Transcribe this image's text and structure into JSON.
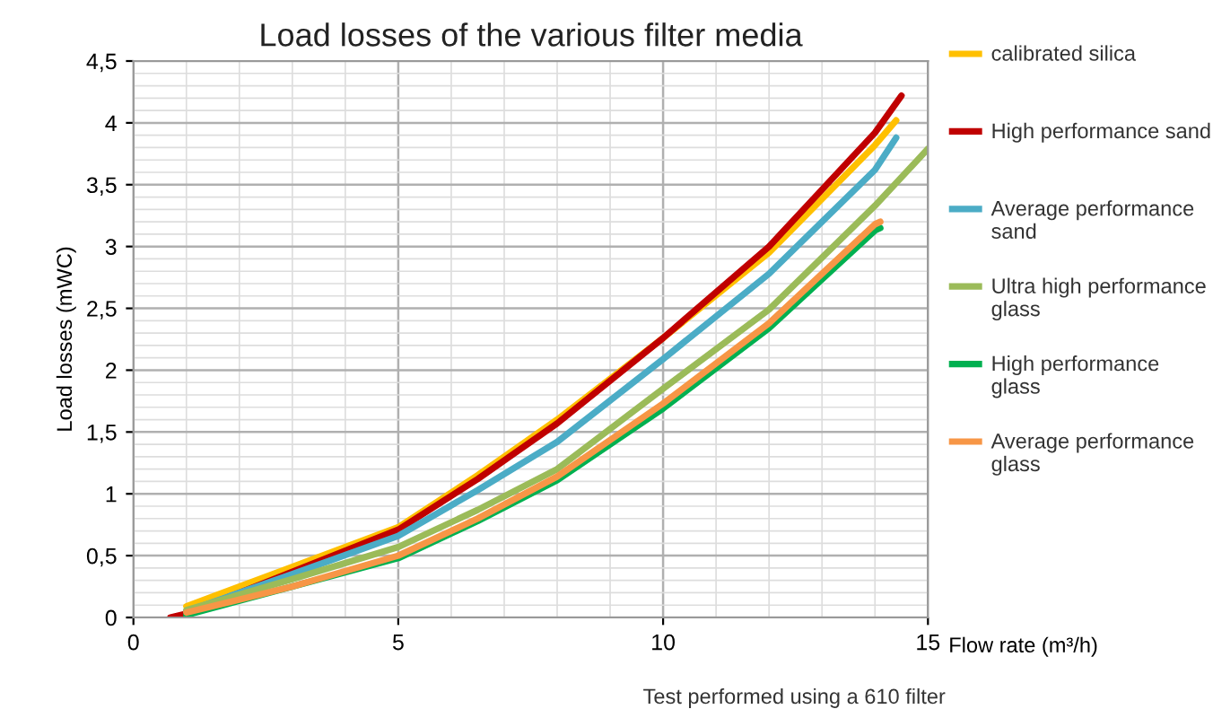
{
  "chart_data": {
    "type": "line",
    "title": "Load losses of the various filter media",
    "ylabel": "Load losses (mWC)",
    "xlabel": "Flow rate (m³/h)",
    "annotations": [
      "Test performed using a 610 filter"
    ],
    "xlim": [
      0,
      15
    ],
    "xticks": [
      0,
      5,
      10,
      15
    ],
    "ylim": [
      0,
      4.5
    ],
    "yticks": [
      0,
      {
        "value": 0.5,
        "label": "0,5"
      },
      1,
      {
        "value": 1.5,
        "label": "1,5"
      },
      2,
      {
        "value": 2.5,
        "label": "2,5"
      },
      3,
      {
        "value": 3.5,
        "label": "3,5"
      },
      4,
      {
        "value": 4.5,
        "label": "4,5"
      }
    ],
    "grid": true,
    "legend": "right",
    "line_style": "solid",
    "marker": "none",
    "series": [
      {
        "name": "calibrated silica",
        "color": "#ffc000",
        "x": [
          1,
          3,
          5,
          6.5,
          8,
          10,
          12,
          14,
          14.4
        ],
        "values": [
          0.09,
          0.41,
          0.73,
          1.15,
          1.6,
          2.26,
          2.95,
          3.82,
          4.02
        ]
      },
      {
        "name": "High performance sand",
        "color": "#c00000",
        "x": [
          0.7,
          1,
          3,
          5,
          6.5,
          8,
          10,
          12,
          14,
          14.5
        ],
        "values": [
          0,
          0.03,
          0.37,
          0.71,
          1.12,
          1.57,
          2.26,
          3.0,
          3.92,
          4.22
        ]
      },
      {
        "name": "Average performance sand",
        "color": "#4bacc6",
        "x": [
          1,
          3,
          5,
          6.5,
          8,
          10,
          12,
          14,
          14.4
        ],
        "values": [
          0.05,
          0.35,
          0.66,
          1.03,
          1.42,
          2.09,
          2.78,
          3.62,
          3.88
        ]
      },
      {
        "name": "Ultra high performance glass",
        "color": "#9bbb59",
        "x": [
          1,
          3,
          5,
          6.5,
          8,
          10,
          12,
          14,
          15
        ],
        "values": [
          0.06,
          0.31,
          0.57,
          0.87,
          1.2,
          1.85,
          2.49,
          3.33,
          3.79
        ]
      },
      {
        "name": "High performance glass",
        "color": "#00b050",
        "x": [
          1,
          3,
          5,
          6.5,
          8,
          10,
          12,
          14,
          14.1
        ],
        "values": [
          0.02,
          0.25,
          0.48,
          0.78,
          1.11,
          1.69,
          2.34,
          3.13,
          3.15
        ]
      },
      {
        "name": "Average performance glass",
        "color": "#f79646",
        "x": [
          1,
          3,
          5,
          6.5,
          8,
          10,
          12,
          14,
          14.1
        ],
        "values": [
          0.04,
          0.25,
          0.5,
          0.8,
          1.14,
          1.73,
          2.38,
          3.18,
          3.2
        ]
      }
    ]
  }
}
